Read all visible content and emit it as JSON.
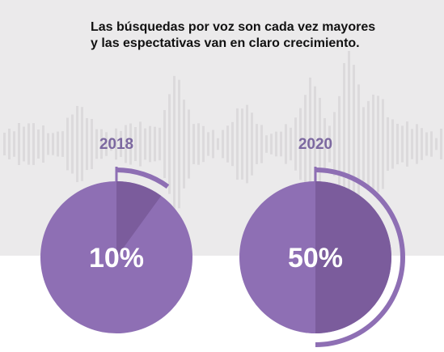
{
  "colors": {
    "band": "#ebeaeb",
    "wave": "#dcdadc",
    "pie_base": "#8e6fb4",
    "pie_slice": "#7b5c9c",
    "ring": "#8e6fb4",
    "year_text": "#7c68a0",
    "percent_text": "#ffffff",
    "heading_text": "#111111"
  },
  "heading": {
    "line1": "Las búsquedas por voz son cada vez mayores",
    "line2": "y las espectativas van en claro crecimiento."
  },
  "chart_data": [
    {
      "type": "pie",
      "year": "2018",
      "value": 10,
      "label": "10%"
    },
    {
      "type": "pie",
      "year": "2020",
      "value": 50,
      "label": "50%"
    }
  ]
}
